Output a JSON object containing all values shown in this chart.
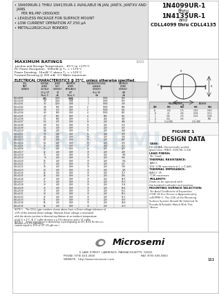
{
  "bg_color": "#e8e8e8",
  "title_right_line1": "1N4099UR-1",
  "title_right_line2": "thru",
  "title_right_line3": "1N4135UR-1",
  "title_right_line4": "and",
  "title_right_line5": "CDLL4099 thru CDLL4135",
  "bullet1a": "• 1N4099UR-1 THRU 1N4135UR-1 AVAILABLE IN JAN, JANTX, JANTXV AND",
  "bullet1b": "  JANS",
  "bullet1c": "    PER MIL-PRF-19500/405",
  "bullet2": "• LEADLESS PACKAGE FOR SURFACE MOUNT",
  "bullet3": "• LOW CURRENT OPERATION AT 250 μA",
  "bullet4": "• METALLURGICALLY BONDED",
  "max_ratings_title": "MAXIMUM RATINGS",
  "max_ratings": [
    "Junction and Storage Temperature:  -65°C to +175°C",
    "DC Power Dissipation:  500mW @ Tₐⱼ = +175°C",
    "Power Derating:  16mW °C above Tₐⱼ = +125°C",
    "Forward Derating @ 200 mA:  0.1 Watts maximum"
  ],
  "elec_char_title": "ELECTRICAL CHARACTERISTICS @ 25°C, unless otherwise specified.",
  "watermark": "Microsemi",
  "figure_title": "FIGURE 1",
  "design_data_title": "DESIGN DATA",
  "footer_logo": "Microsemi",
  "footer_address": "6 LAKE STREET, LAWRENCE, MASSACHUSETTS  01841",
  "footer_phone": "PHONE (978) 620-2600",
  "footer_fax": "FAX (978) 689-0803",
  "footer_website": "WEBSITE:  http://www.microsemi.com",
  "footer_page": "111",
  "table_rows": [
    [
      "CDLL4099",
      "2.7",
      "1250",
      "0.08",
      "1",
      "1000",
      "0.1",
      "1000",
      "940"
    ],
    [
      "CDLL4100",
      "3.0",
      "1250",
      "0.08",
      "1",
      "1000",
      "0.1",
      "1000",
      "833"
    ],
    [
      "CDLL4101",
      "3.3",
      "1250",
      "0.08",
      "1",
      "1000",
      "0.15",
      "1000",
      "758"
    ],
    [
      "CDLL4102",
      "3.6",
      "900",
      "0.09",
      "2",
      "1000",
      "0.2",
      "1000",
      "694"
    ],
    [
      "CDLL4103",
      "3.9",
      "750",
      "0.09",
      "2",
      "1000",
      "0.25",
      "1000",
      "641"
    ],
    [
      "CDLL4104",
      "4.3",
      "600",
      "0.09",
      "4",
      "1000",
      "0.35",
      "1000",
      "581"
    ],
    [
      "CDLL4105",
      "4.7",
      "550",
      "0.09",
      "4",
      "500",
      "0.5",
      "500",
      "531"
    ],
    [
      "CDLL4106",
      "5.1",
      "500",
      "0.09",
      "4",
      "200",
      "1",
      "200",
      "490"
    ],
    [
      "CDLL4107",
      "5.6",
      "475",
      "0.09",
      "11",
      "200",
      "2",
      "200",
      "446"
    ],
    [
      "CDLL4108",
      "6.0",
      "450",
      "0.09",
      "11",
      "200",
      "3",
      "100",
      "416"
    ],
    [
      "CDLL4109",
      "6.2",
      "400",
      "0.09",
      "11",
      "200",
      "4",
      "50",
      "403"
    ],
    [
      "CDLL4110",
      "6.8",
      "400",
      "0.09",
      "11",
      "200",
      "5",
      "50",
      "368"
    ],
    [
      "CDLL4111",
      "7.5",
      "400",
      "0.09",
      "11",
      "200",
      "6",
      "50",
      "333"
    ],
    [
      "CDLL4112",
      "8.2",
      "400",
      "0.09",
      "15",
      "200",
      "7",
      "50",
      "304"
    ],
    [
      "CDLL4113",
      "8.7",
      "400",
      "0.09",
      "15",
      "200",
      "8",
      "50",
      "287"
    ],
    [
      "CDLL4114",
      "9.1",
      "400",
      "0.09",
      "15",
      "200",
      "9",
      "50",
      "274"
    ],
    [
      "CDLL4115",
      "10",
      "400",
      "0.09",
      "17",
      "200",
      "10",
      "25",
      "250"
    ],
    [
      "CDLL4116",
      "11",
      "400",
      "0.09",
      "22",
      "200",
      "11",
      "25",
      "227"
    ],
    [
      "CDLL4117",
      "12",
      "400",
      "0.09",
      "30",
      "200",
      "12",
      "25",
      "208"
    ],
    [
      "CDLL4118",
      "13",
      "400",
      "0.09",
      "30",
      "200",
      "13",
      "25",
      "192"
    ],
    [
      "CDLL4119",
      "15",
      "400",
      "0.09",
      "30",
      "200",
      "15",
      "25",
      "166"
    ],
    [
      "CDLL4120",
      "16",
      "400",
      "0.09",
      "30",
      "200",
      "16",
      "17",
      "156"
    ],
    [
      "CDLL4121",
      "17",
      "400",
      "0.09",
      "30",
      "200",
      "17",
      "17",
      "147"
    ],
    [
      "CDLL4122",
      "18",
      "400",
      "0.09",
      "30",
      "200",
      "18",
      "17",
      "138"
    ],
    [
      "CDLL4123",
      "20",
      "400",
      "0.09",
      "30",
      "200",
      "20",
      "17",
      "125"
    ],
    [
      "CDLL4124",
      "22",
      "400",
      "0.09",
      "30",
      "200",
      "22",
      "8.5",
      "113"
    ],
    [
      "CDLL4125",
      "24",
      "400",
      "0.09",
      "30",
      "200",
      "24",
      "8.5",
      "104"
    ],
    [
      "CDLL4126",
      "27",
      "400",
      "0.09",
      "30",
      "200",
      "27",
      "8.5",
      "92.6"
    ],
    [
      "CDLL4127",
      "30",
      "400",
      "0.09",
      "30",
      "200",
      "30",
      "8.5",
      "83.3"
    ],
    [
      "CDLL4128",
      "33",
      "400",
      "0.09",
      "30",
      "200",
      "33",
      "8.5",
      "75.8"
    ],
    [
      "CDLL4129",
      "36",
      "400",
      "0.09",
      "30",
      "200",
      "36",
      "8.5",
      "69.4"
    ],
    [
      "CDLL4130",
      "39",
      "400",
      "0.09",
      "30",
      "200",
      "39",
      "8.5",
      "64.1"
    ],
    [
      "CDLL4131",
      "43",
      "400",
      "0.09",
      "30",
      "200",
      "43",
      "8.5",
      "58.1"
    ],
    [
      "CDLL4132",
      "47",
      "400",
      "0.09",
      "30",
      "200",
      "47",
      "8.5",
      "53.1"
    ],
    [
      "CDLL4133",
      "51",
      "400",
      "0.09",
      "30",
      "200",
      "51",
      "8.5",
      "49.0"
    ],
    [
      "CDLL4134",
      "56",
      "400",
      "0.09",
      "30",
      "200",
      "56",
      "8.5",
      "44.6"
    ],
    [
      "CDLL4135",
      "62",
      "400",
      "0.09",
      "30",
      "200",
      "62",
      "8.5",
      "40.3"
    ]
  ],
  "note1": "NOTE 1    The CDLL type numbers shown above have a Zener voltage tolerance of\n±5% of the nominal Zener voltage. Nominal Zener voltage is measured\nwith the device junction in thermal equilibrium at an ambient temperature\nof 25°C ± 1°C. A ‘C’ suffix denotes a ± 5% tolerance and a ‘D’ suffix\ndenotes a ± 1% tolerance.",
  "note2": "NOTE 2    Zener impedance is derived by superimposing on IZT, A 60 Hz rms a.c.\ncurrent equal to 10% of IZT (25 μA rms.).",
  "dim_table_header": [
    "DIM",
    "MIN",
    "MAX",
    "MIN",
    "MAX"
  ],
  "dim_table_rows": [
    [
      "A",
      "1.80",
      "1.75",
      "0.065",
      "0.069"
    ],
    [
      "B",
      "2.4",
      "2.85",
      "0.095",
      "0.112"
    ],
    [
      "C",
      "0.40",
      "2.75",
      "0.016",
      "0.108"
    ],
    [
      "D",
      "0.24",
      "0.25",
      "---",
      "MIN"
    ],
    [
      "E",
      "0.24 MIN",
      "",
      "0.01 MIN",
      ""
    ]
  ],
  "design_entries": [
    [
      "CASE:",
      "DO-213AA, Hermetically sealed\nglass case. (MELF, SOD-80, LL34)"
    ],
    [
      "LEAD FINISH:",
      "Tin / Lead"
    ],
    [
      "THERMAL RESISTANCE:",
      "θJA(C):\n100 °C/W maximum at L = 0.4nR."
    ],
    [
      "THERMAL IMPEDANCE:",
      "θJA(C): 35\n°C/W maximum"
    ],
    [
      "POLARITY:",
      "Diode to be operated with\nthe banded (cathode) end positive."
    ],
    [
      "MOUNTING SURFACE SELECTION:",
      "The Axial Coefficient of Expansion\n(COE) Of this Device is Approximately\n±45PPM/°C. The COE of the Mounting\nSurface System Should Be Selected To\nProvide A Reliable Match With This\nDevice."
    ]
  ]
}
